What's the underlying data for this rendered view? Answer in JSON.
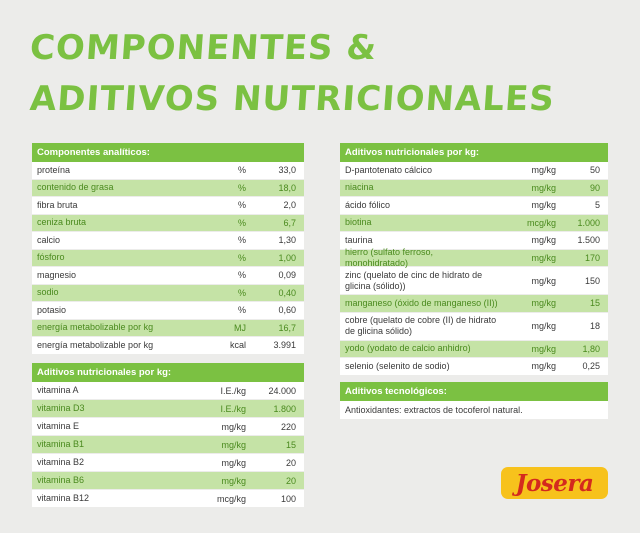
{
  "title": {
    "line1": "Componentes &",
    "line2": "Aditivos Nutricionales"
  },
  "analytic": {
    "header": "Componentes analíticos:",
    "rows": [
      {
        "name": "proteína",
        "unit": "%",
        "value": "33,0"
      },
      {
        "name": "contenido de grasa",
        "unit": "%",
        "value": "18,0"
      },
      {
        "name": "fibra bruta",
        "unit": "%",
        "value": "2,0"
      },
      {
        "name": "ceniza bruta",
        "unit": "%",
        "value": "6,7"
      },
      {
        "name": "calcio",
        "unit": "%",
        "value": "1,30"
      },
      {
        "name": "fósforo",
        "unit": "%",
        "value": "1,00"
      },
      {
        "name": "magnesio",
        "unit": "%",
        "value": "0,09"
      },
      {
        "name": "sodio",
        "unit": "%",
        "value": "0,40"
      },
      {
        "name": "potasio",
        "unit": "%",
        "value": "0,60"
      },
      {
        "name": "energía metabolizable por kg",
        "unit": "MJ",
        "value": "16,7"
      },
      {
        "name": "energía metabolizable por kg",
        "unit": "kcal",
        "value": "3.991"
      }
    ]
  },
  "vitamins": {
    "header": "Aditivos nutricionales por kg:",
    "rows": [
      {
        "name": "vitamina A",
        "unit": "I.E./kg",
        "value": "24.000"
      },
      {
        "name": "vitamina D3",
        "unit": "I.E./kg",
        "value": "1.800"
      },
      {
        "name": "vitamina E",
        "unit": "mg/kg",
        "value": "220"
      },
      {
        "name": "vitamina B1",
        "unit": "mg/kg",
        "value": "15"
      },
      {
        "name": "vitamina B2",
        "unit": "mg/kg",
        "value": "20"
      },
      {
        "name": "vitamina B6",
        "unit": "mg/kg",
        "value": "20"
      },
      {
        "name": "vitamina B12",
        "unit": "mcg/kg",
        "value": "100"
      }
    ]
  },
  "additives": {
    "header": "Aditivos nutricionales por kg:",
    "rows": [
      {
        "name": "D-pantotenato cálcico",
        "unit": "mg/kg",
        "value": "50"
      },
      {
        "name": "niacina",
        "unit": "mg/kg",
        "value": "90"
      },
      {
        "name": "ácido fólico",
        "unit": "mg/kg",
        "value": "5"
      },
      {
        "name": "biotina",
        "unit": "mcg/kg",
        "value": "1.000"
      },
      {
        "name": "taurina",
        "unit": "mg/kg",
        "value": "1.500"
      },
      {
        "name": "hierro (sulfato ferroso, monohidratado)",
        "unit": "mg/kg",
        "value": "170"
      },
      {
        "name": "zinc (quelato de cinc de hidrato de glicina (sólido))",
        "unit": "mg/kg",
        "value": "150"
      },
      {
        "name": "manganeso (óxido de manganeso (II))",
        "unit": "mg/kg",
        "value": "15"
      },
      {
        "name": "cobre (quelato de cobre (II) de hidrato de glicina sólido)",
        "unit": "mg/kg",
        "value": "18"
      },
      {
        "name": "yodo (yodato de calcio anhidro)",
        "unit": "mg/kg",
        "value": "1,80"
      },
      {
        "name": "selenio (selenito de sodio)",
        "unit": "mg/kg",
        "value": "0,25"
      }
    ]
  },
  "tech": {
    "header": "Aditivos tecnológicos:",
    "note": "Antioxidantes: extractos de tocoferol natural."
  },
  "logo": {
    "text": "Josera"
  },
  "colors": {
    "accent_green": "#7bc142",
    "row_highlight": "#c5e3a6",
    "background": "#ececea",
    "logo_yellow": "#f7c21c",
    "logo_red": "#d42a1e"
  }
}
